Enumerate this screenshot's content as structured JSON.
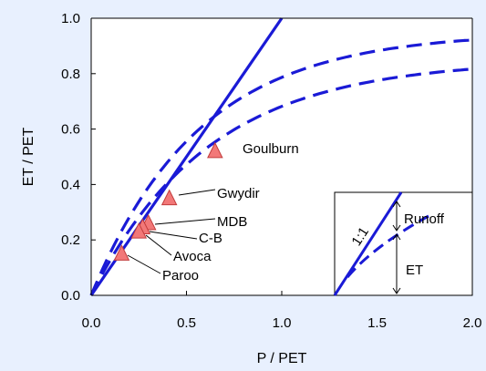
{
  "chart_data": {
    "type": "scatter",
    "xlabel": "P / PET",
    "ylabel": "ET / PET",
    "xlim": [
      0,
      2
    ],
    "ylim": [
      0,
      1
    ],
    "x_ticks": [
      "0.0",
      "0.5",
      "1.0",
      "1.5",
      "2.0"
    ],
    "y_ticks": [
      "0.0",
      "0.2",
      "0.4",
      "0.6",
      "0.8",
      "1.0"
    ],
    "x_tick_values": [
      0,
      0.5,
      1,
      1.5,
      2
    ],
    "y_tick_values": [
      0,
      0.2,
      0.4,
      0.6,
      0.8,
      1.0
    ],
    "grid": false,
    "lines": [
      {
        "style": "solid",
        "x": [
          0,
          1.0
        ],
        "y": [
          0,
          1.0
        ]
      },
      {
        "style": "dashed",
        "asymptote": 0.95,
        "rate": 1.76
      },
      {
        "style": "dashed",
        "asymptote": 0.85,
        "rate": 1.62
      }
    ],
    "points": [
      {
        "label": "Goulburn",
        "x": 0.65,
        "y": 0.52
      },
      {
        "label": "Gwydir",
        "x": 0.41,
        "y": 0.35
      },
      {
        "label": "MDB",
        "x": 0.3,
        "y": 0.26
      },
      {
        "label": "C-B",
        "x": 0.27,
        "y": 0.245
      },
      {
        "label": "Avoca",
        "x": 0.25,
        "y": 0.23
      },
      {
        "label": "Paroo",
        "x": 0.16,
        "y": 0.15
      }
    ],
    "inset": {
      "line_label": "1:1",
      "top_label": "Runoff",
      "bottom_label": "ET"
    },
    "colors": {
      "line": "#1a1ad6",
      "marker_fill": "#f27878",
      "marker_stroke": "#c23c3c",
      "background": "#e8f0fe"
    }
  }
}
